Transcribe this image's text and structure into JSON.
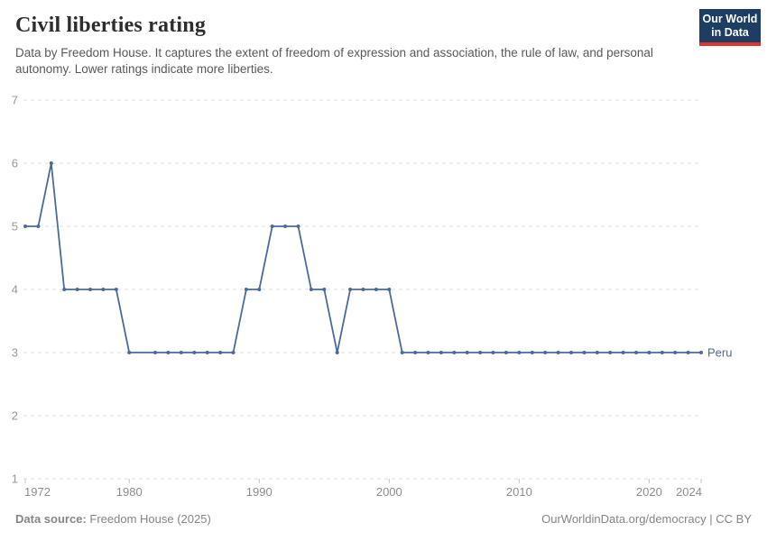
{
  "header": {
    "title": "Civil liberties rating",
    "subtitle": "Data by Freedom House. It captures the extent of freedom of expression and association, the rule of law, and personal autonomy. Lower ratings indicate more liberties.",
    "logo": {
      "line1": "Our World",
      "line2": "in Data"
    }
  },
  "footer": {
    "source_label": "Data source:",
    "source_value": "Freedom House (2025)",
    "right_text": "OurWorldinData.org/democracy | CC BY"
  },
  "colors": {
    "series_blue": "#4C6A9C",
    "grid": "#dedede",
    "axis_text": "#8e8e8e",
    "y_axis_text": "#999999",
    "tick_mark": "#c4c4c4",
    "logo_navy": "#1d3d63",
    "logo_red": "#dc352b"
  },
  "chart_data": {
    "type": "line",
    "title": "Civil liberties rating",
    "xlabel": "",
    "ylabel": "",
    "xlim": [
      1972,
      2024
    ],
    "ylim": [
      1,
      7
    ],
    "x_ticks": [
      1972,
      1980,
      1990,
      2000,
      2010,
      2020,
      2024
    ],
    "y_ticks": [
      1,
      2,
      3,
      4,
      5,
      6,
      7
    ],
    "grid": "horizontal-dashed",
    "legend_position": "end-of-line-label",
    "series": [
      {
        "name": "Peru",
        "color": "#4C6A9C",
        "points": [
          [
            1972,
            5
          ],
          [
            1973,
            5
          ],
          [
            1974,
            6
          ],
          [
            1975,
            4
          ],
          [
            1976,
            4
          ],
          [
            1977,
            4
          ],
          [
            1978,
            4
          ],
          [
            1979,
            4
          ],
          [
            1980,
            3
          ],
          [
            1982,
            3
          ],
          [
            1983,
            3
          ],
          [
            1984,
            3
          ],
          [
            1985,
            3
          ],
          [
            1986,
            3
          ],
          [
            1987,
            3
          ],
          [
            1988,
            3
          ],
          [
            1989,
            4
          ],
          [
            1990,
            4
          ],
          [
            1991,
            5
          ],
          [
            1992,
            5
          ],
          [
            1993,
            5
          ],
          [
            1994,
            4
          ],
          [
            1995,
            4
          ],
          [
            1996,
            3
          ],
          [
            1997,
            4
          ],
          [
            1998,
            4
          ],
          [
            1999,
            4
          ],
          [
            2000,
            4
          ],
          [
            2001,
            3
          ],
          [
            2002,
            3
          ],
          [
            2003,
            3
          ],
          [
            2004,
            3
          ],
          [
            2005,
            3
          ],
          [
            2006,
            3
          ],
          [
            2007,
            3
          ],
          [
            2008,
            3
          ],
          [
            2009,
            3
          ],
          [
            2010,
            3
          ],
          [
            2011,
            3
          ],
          [
            2012,
            3
          ],
          [
            2013,
            3
          ],
          [
            2014,
            3
          ],
          [
            2015,
            3
          ],
          [
            2016,
            3
          ],
          [
            2017,
            3
          ],
          [
            2018,
            3
          ],
          [
            2019,
            3
          ],
          [
            2020,
            3
          ],
          [
            2021,
            3
          ],
          [
            2022,
            3
          ],
          [
            2023,
            3
          ],
          [
            2024,
            3
          ]
        ]
      }
    ]
  }
}
